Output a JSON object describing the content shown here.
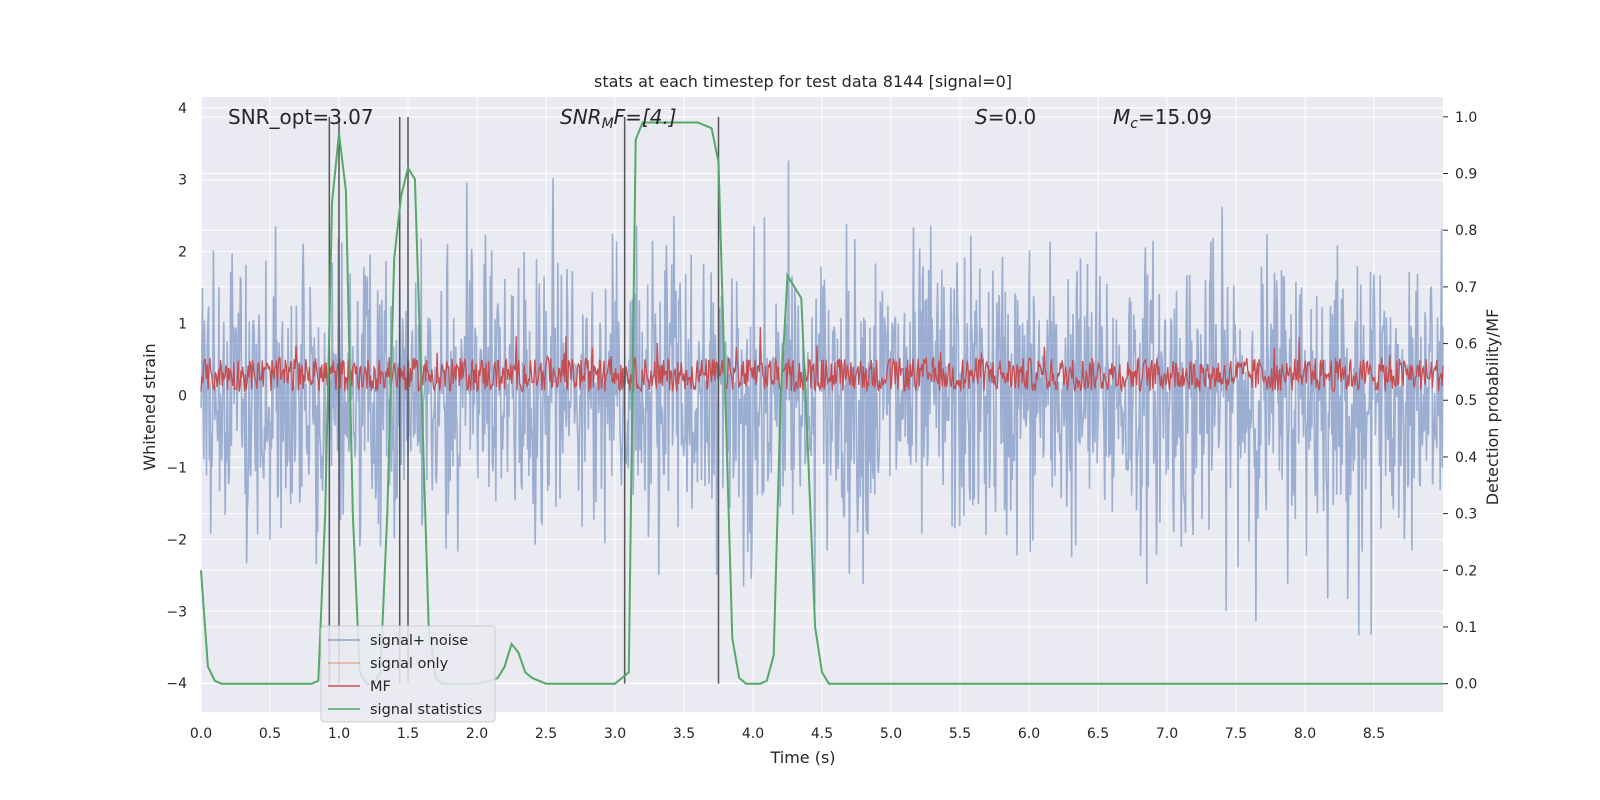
{
  "chart_data": {
    "type": "line",
    "title": "stats at each timestep for test data 8144 [signal=0]",
    "xlabel": "Time (s)",
    "ylabel_left": "Whitened strain",
    "ylabel_right": "Detection probability/MF",
    "xlim": [
      0.0,
      9.0
    ],
    "ylim_left": [
      -4.4,
      4.15
    ],
    "ylim_right": [
      -0.05,
      1.035
    ],
    "xticks": [
      "0.0",
      "0.5",
      "1.0",
      "1.5",
      "2.0",
      "2.5",
      "3.0",
      "3.5",
      "4.0",
      "4.5",
      "5.0",
      "5.5",
      "6.0",
      "6.5",
      "7.0",
      "7.5",
      "8.0",
      "8.5"
    ],
    "yticks_left": [
      "−4",
      "−3",
      "−2",
      "−1",
      "0",
      "1",
      "2",
      "3",
      "4"
    ],
    "yticks_right": [
      "0.0",
      "0.1",
      "0.2",
      "0.3",
      "0.4",
      "0.5",
      "0.6",
      "0.7",
      "0.8",
      "0.9",
      "1.0"
    ],
    "grid": true,
    "legend_position": "lower-left",
    "annotations": {
      "snr_opt": "SNR_opt=3.07",
      "snr_mf": "SNR",
      "snr_mf_sub": "M",
      "snr_mf_tail": "F=[4.]",
      "s": "S",
      "s_tail": "=0.0",
      "mc": "M",
      "mc_sub": "c",
      "mc_tail": "=15.09"
    },
    "vertical_lines_x": [
      0.93,
      1.0,
      1.44,
      1.5,
      3.07,
      3.75
    ],
    "series": [
      {
        "name": "signal+ noise",
        "color": "#4c72b0",
        "axis": "left",
        "description_values": {
          "typical_range": [
            -2.0,
            2.0
          ],
          "peak_range": [
            -3.6,
            3.4
          ]
        }
      },
      {
        "name": "signal only",
        "color": "#dd8452",
        "axis": "left",
        "values": []
      },
      {
        "name": "MF",
        "color": "#c44e52",
        "axis": "right",
        "description_values": {
          "typical_range": [
            0.52,
            0.6
          ],
          "peak_range": [
            0.5,
            0.63
          ]
        }
      },
      {
        "name": "signal statistics",
        "color": "#55a868",
        "axis": "right",
        "x": [
          0.0,
          0.05,
          0.1,
          0.15,
          0.2,
          0.3,
          0.4,
          0.5,
          0.6,
          0.7,
          0.8,
          0.85,
          0.9,
          0.95,
          1.0,
          1.05,
          1.1,
          1.15,
          1.2,
          1.25,
          1.3,
          1.35,
          1.4,
          1.45,
          1.5,
          1.55,
          1.6,
          1.65,
          1.7,
          1.75,
          1.8,
          1.9,
          2.0,
          2.1,
          2.15,
          2.2,
          2.25,
          2.3,
          2.35,
          2.4,
          2.45,
          2.5,
          2.6,
          2.7,
          2.8,
          2.9,
          3.0,
          3.05,
          3.1,
          3.15,
          3.2,
          3.3,
          3.4,
          3.5,
          3.6,
          3.65,
          3.7,
          3.75,
          3.8,
          3.85,
          3.9,
          3.95,
          4.0,
          4.05,
          4.1,
          4.15,
          4.2,
          4.25,
          4.3,
          4.35,
          4.4,
          4.45,
          4.5,
          4.55,
          4.6,
          4.7,
          5.0,
          6.0,
          7.0,
          8.0,
          9.0
        ],
        "values": [
          0.2,
          0.03,
          0.005,
          0.0,
          0.0,
          0.0,
          0.0,
          0.0,
          0.0,
          0.0,
          0.0,
          0.005,
          0.3,
          0.85,
          0.97,
          0.87,
          0.3,
          0.02,
          0.0,
          0.0,
          0.02,
          0.3,
          0.75,
          0.86,
          0.91,
          0.89,
          0.5,
          0.1,
          0.01,
          0.0,
          0.0,
          0.0,
          0.0,
          0.005,
          0.01,
          0.03,
          0.07,
          0.055,
          0.02,
          0.01,
          0.005,
          0.0,
          0.0,
          0.0,
          0.0,
          0.0,
          0.0,
          0.01,
          0.02,
          0.96,
          0.99,
          0.99,
          0.99,
          0.99,
          0.99,
          0.985,
          0.98,
          0.92,
          0.5,
          0.08,
          0.01,
          0.0,
          0.0,
          0.0,
          0.005,
          0.05,
          0.5,
          0.72,
          0.7,
          0.68,
          0.4,
          0.1,
          0.02,
          0.0,
          0.0,
          0.0,
          0.0,
          0.0,
          0.0,
          0.0,
          0.0
        ]
      }
    ]
  },
  "legend": {
    "items": [
      {
        "label": "signal+ noise",
        "color": "#4c72b0"
      },
      {
        "label": "signal only",
        "color": "#dd8452"
      },
      {
        "label": "MF",
        "color": "#c44e52"
      },
      {
        "label": "signal statistics",
        "color": "#55a868"
      }
    ]
  }
}
